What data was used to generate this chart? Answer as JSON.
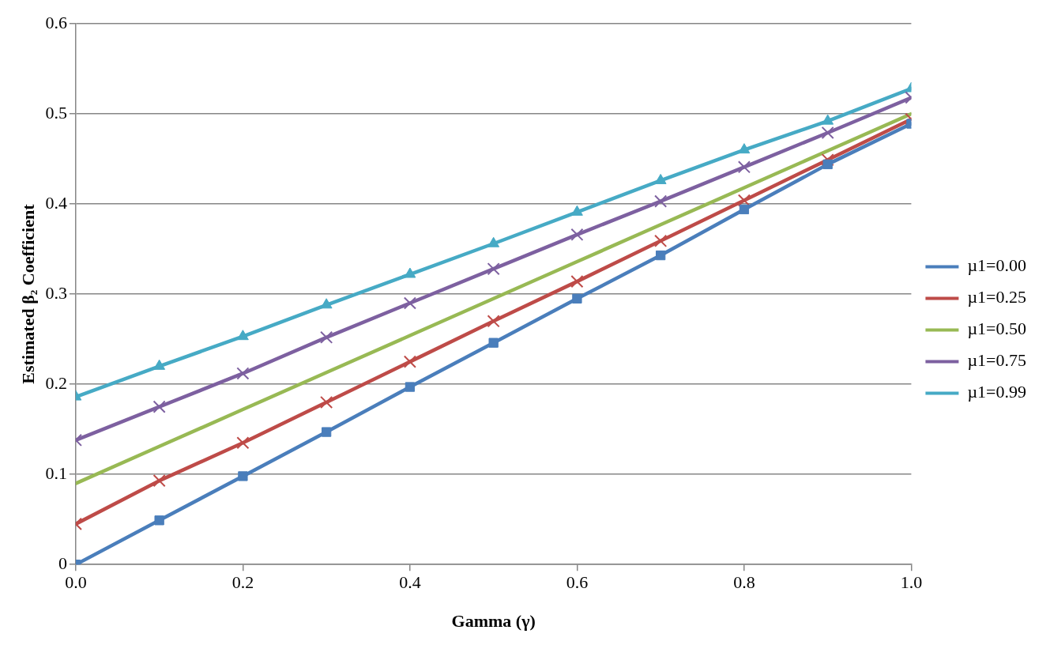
{
  "chart_data": {
    "type": "line",
    "xlabel": "Gamma (γ)",
    "ylabel": "Estimated β₂ Coefficient",
    "x": [
      0,
      0.1,
      0.2,
      0.3,
      0.4,
      0.5,
      0.6,
      0.7,
      0.8,
      0.9,
      1.0
    ],
    "series": [
      {
        "name": "µ1=0.00",
        "color": "#4a7ebb",
        "marker": "square",
        "values": [
          0,
          0.049,
          0.098,
          0.147,
          0.197,
          0.246,
          0.295,
          0.343,
          0.394,
          0.444,
          0.489
        ]
      },
      {
        "name": "µ1=0.25",
        "color": "#be4b48",
        "marker": "cross",
        "values": [
          0.045,
          0.093,
          0.135,
          0.18,
          0.225,
          0.27,
          0.314,
          0.359,
          0.404,
          0.449,
          0.494
        ]
      },
      {
        "name": "µ1=0.50",
        "color": "#98b954",
        "marker": "none",
        "values": [
          0.09,
          0.131,
          0.172,
          0.213,
          0.254,
          0.295,
          0.336,
          0.377,
          0.418,
          0.459,
          0.5
        ]
      },
      {
        "name": "µ1=0.75",
        "color": "#7d60a0",
        "marker": "cross",
        "values": [
          0.138,
          0.175,
          0.212,
          0.252,
          0.29,
          0.328,
          0.366,
          0.403,
          0.441,
          0.479,
          0.518
        ]
      },
      {
        "name": "µ1=0.99",
        "color": "#46aac5",
        "marker": "triangle",
        "values": [
          0.186,
          0.22,
          0.253,
          0.288,
          0.322,
          0.356,
          0.391,
          0.426,
          0.46,
          0.492,
          0.528
        ]
      }
    ],
    "xlim": [
      0,
      1.0
    ],
    "xticks": [
      {
        "value": 0,
        "label": "0.0"
      },
      0.2,
      0.4,
      0.6,
      0.8,
      {
        "value": 1.0,
        "label": "1.0"
      }
    ],
    "ylim": [
      0,
      0.6
    ],
    "yticks": [
      0,
      0.1,
      0.2,
      0.3,
      0.4,
      0.5,
      0.6
    ],
    "grid": "y",
    "legend": "right",
    "line_style": "solid"
  }
}
